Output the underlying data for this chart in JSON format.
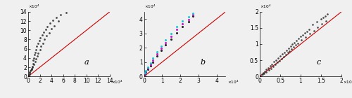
{
  "panel_a": {
    "label": "a",
    "xlim": [
      0,
      140000
    ],
    "ylim": [
      0,
      140000
    ],
    "xtick_vals": [
      0,
      20000,
      40000,
      60000,
      80000,
      100000,
      120000,
      140000
    ],
    "ytick_vals": [
      0,
      20000,
      40000,
      60000,
      80000,
      100000,
      120000,
      140000
    ],
    "xtick_labels": [
      "0",
      "2",
      "4",
      "6",
      "8",
      "10",
      "12",
      "14"
    ],
    "ytick_labels": [
      "0",
      "2",
      "4",
      "6",
      "8",
      "10",
      "12",
      "14"
    ],
    "line_color": "#cc0000",
    "marker_color": "#2a2a2a",
    "x": [
      2000,
      3000,
      5000,
      6000,
      7000,
      8000,
      9000,
      10000,
      11000,
      12000,
      13000,
      15000,
      17000,
      19000,
      21000,
      24000,
      27000,
      30000,
      33000,
      37000,
      42000,
      48000,
      55000,
      65000,
      1500,
      2500,
      4000,
      5500,
      7500,
      9500,
      11500,
      13500,
      15500,
      17500,
      20000,
      22000,
      25000,
      28000,
      32000,
      36000,
      40000,
      45000,
      52000
    ],
    "y": [
      5000,
      9000,
      14000,
      17000,
      22000,
      28000,
      35000,
      40000,
      47000,
      52000,
      58000,
      65000,
      72000,
      78000,
      84000,
      90000,
      96000,
      102000,
      108000,
      115000,
      122000,
      128000,
      133000,
      138000,
      4000,
      8000,
      12000,
      16000,
      20000,
      26000,
      32000,
      38000,
      44000,
      51000,
      58000,
      65000,
      72000,
      80000,
      88000,
      95000,
      103000,
      110000,
      120000
    ]
  },
  "panel_b": {
    "label": "b",
    "xlim": [
      0,
      45000
    ],
    "ylim": [
      0,
      45000
    ],
    "xtick_vals": [
      0,
      10000,
      20000,
      30000,
      40000
    ],
    "ytick_vals": [
      0,
      10000,
      20000,
      30000,
      40000
    ],
    "xtick_labels": [
      "0",
      "1",
      "2",
      "3",
      "4"
    ],
    "ytick_labels": [
      "0",
      "1",
      "2",
      "3",
      "4"
    ],
    "line_color": "#cc0000",
    "cyan_x": [
      500,
      1000,
      2000,
      3500,
      5000,
      7000,
      9500,
      12000,
      15000,
      18000,
      21000,
      24500,
      27000
    ],
    "cyan_y": [
      2500,
      4000,
      6500,
      9500,
      13000,
      17000,
      21000,
      25500,
      30000,
      34500,
      38500,
      41500,
      44000
    ],
    "magenta_x": [
      500,
      1000,
      2000,
      3500,
      5000,
      7000,
      9500,
      12000,
      15000,
      18000,
      21000,
      24500,
      27000
    ],
    "magenta_y": [
      2000,
      3500,
      5800,
      8500,
      11500,
      15500,
      19500,
      23500,
      28000,
      32500,
      36500,
      39500,
      43000
    ],
    "black_x": [
      500,
      1000,
      2000,
      3500,
      5000,
      7000,
      9500,
      12000,
      15000,
      18000,
      21000,
      24500,
      27000
    ],
    "black_y": [
      1500,
      3000,
      5000,
      7500,
      10000,
      14000,
      18000,
      22000,
      26000,
      30500,
      34500,
      38000,
      42000
    ]
  },
  "panel_c": {
    "label": "c",
    "xlim": [
      0,
      20000
    ],
    "ylim": [
      0,
      20000
    ],
    "xtick_vals": [
      0,
      5000,
      10000,
      15000,
      20000
    ],
    "ytick_vals": [
      0,
      5000,
      10000,
      15000,
      20000
    ],
    "xtick_labels": [
      "0",
      "0.5",
      "1",
      "1.5",
      "2"
    ],
    "ytick_labels": [
      "0",
      "0.5",
      "1",
      "1.5",
      "2"
    ],
    "line_color": "#cc0000",
    "marker_color": "#2a2a2a",
    "x": [
      500,
      800,
      1200,
      1600,
      2000,
      2500,
      3000,
      3500,
      4000,
      4500,
      5000,
      5500,
      6000,
      6500,
      7000,
      7500,
      8000,
      8500,
      9000,
      9500,
      10000,
      10500,
      11000,
      11500,
      12000,
      13000,
      14000,
      15000,
      15500,
      16000,
      16500,
      600,
      1000,
      1500,
      2200,
      2800,
      3300,
      3800,
      4300,
      4800,
      5300,
      5800,
      6300,
      6800,
      7300,
      7800,
      8300,
      8800,
      9300,
      10200,
      11200,
      12200,
      13200,
      14200,
      15200,
      16200
    ],
    "y": [
      700,
      1100,
      1600,
      2100,
      2600,
      3200,
      3800,
      4500,
      5100,
      5700,
      6300,
      6900,
      7500,
      8100,
      8700,
      9300,
      9900,
      10500,
      11100,
      11700,
      12300,
      12900,
      13500,
      14000,
      14500,
      16000,
      17000,
      17700,
      18200,
      18700,
      19200,
      600,
      900,
      1400,
      1900,
      2500,
      3100,
      3700,
      4300,
      4900,
      5500,
      6100,
      6700,
      7300,
      7900,
      8500,
      9100,
      9700,
      10300,
      11200,
      12200,
      13200,
      14200,
      15200,
      16200,
      17200
    ]
  },
  "tick_labelsize": 5.5,
  "label_fontsize": 8,
  "marker_size_a": 4,
  "marker_size_b": 5,
  "marker_size_c": 3.5,
  "bg_color": "#f0f0f0"
}
